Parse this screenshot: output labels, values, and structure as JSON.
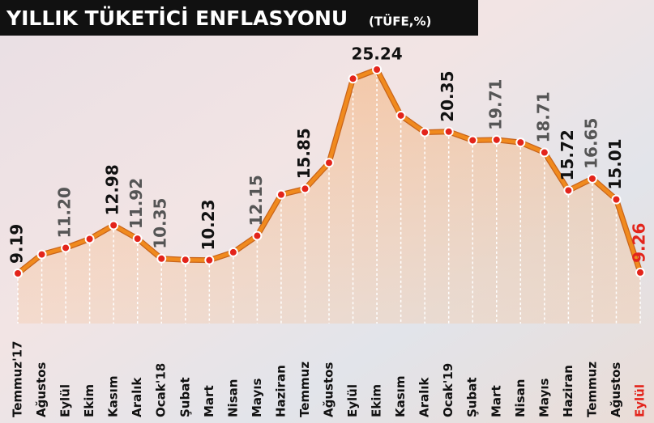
{
  "chart_data": {
    "type": "line",
    "title": "YILLIK TÜKETİCİ ENFLASYONU",
    "subtitle": "(TÜFE,%)",
    "categories": [
      "Temmuz'17",
      "Ağustos",
      "Eylül",
      "Ekim",
      "Kasım",
      "Aralık",
      "Ocak'18",
      "Şubat",
      "Mart",
      "Nisan",
      "Mayıs",
      "Haziran",
      "Temmuz",
      "Ağustos",
      "Eylül",
      "Ekim",
      "Kasım",
      "Aralık",
      "Ocak'19",
      "Şubat",
      "Mart",
      "Nisan",
      "Mayıs",
      "Haziran",
      "Temmuz",
      "Ağustos",
      "Eylül"
    ],
    "values": [
      9.19,
      10.68,
      11.2,
      11.9,
      12.98,
      11.92,
      10.35,
      10.26,
      10.23,
      10.85,
      12.15,
      15.39,
      15.85,
      17.9,
      24.52,
      25.24,
      21.62,
      20.3,
      20.35,
      19.67,
      19.71,
      19.5,
      18.71,
      15.72,
      16.65,
      15.01,
      9.26
    ],
    "value_labels": [
      "9.19",
      null,
      "11.20",
      null,
      "12.98",
      "11.92",
      "10.35",
      null,
      "10.23",
      null,
      "12.15",
      null,
      "15.85",
      null,
      null,
      "25.24",
      null,
      null,
      "20.35",
      null,
      "19.71",
      null,
      "18.71",
      "15.72",
      "16.65",
      "15.01",
      "9.26"
    ],
    "color": "#f08a1e",
    "highlight_color": "#e3241b"
  }
}
